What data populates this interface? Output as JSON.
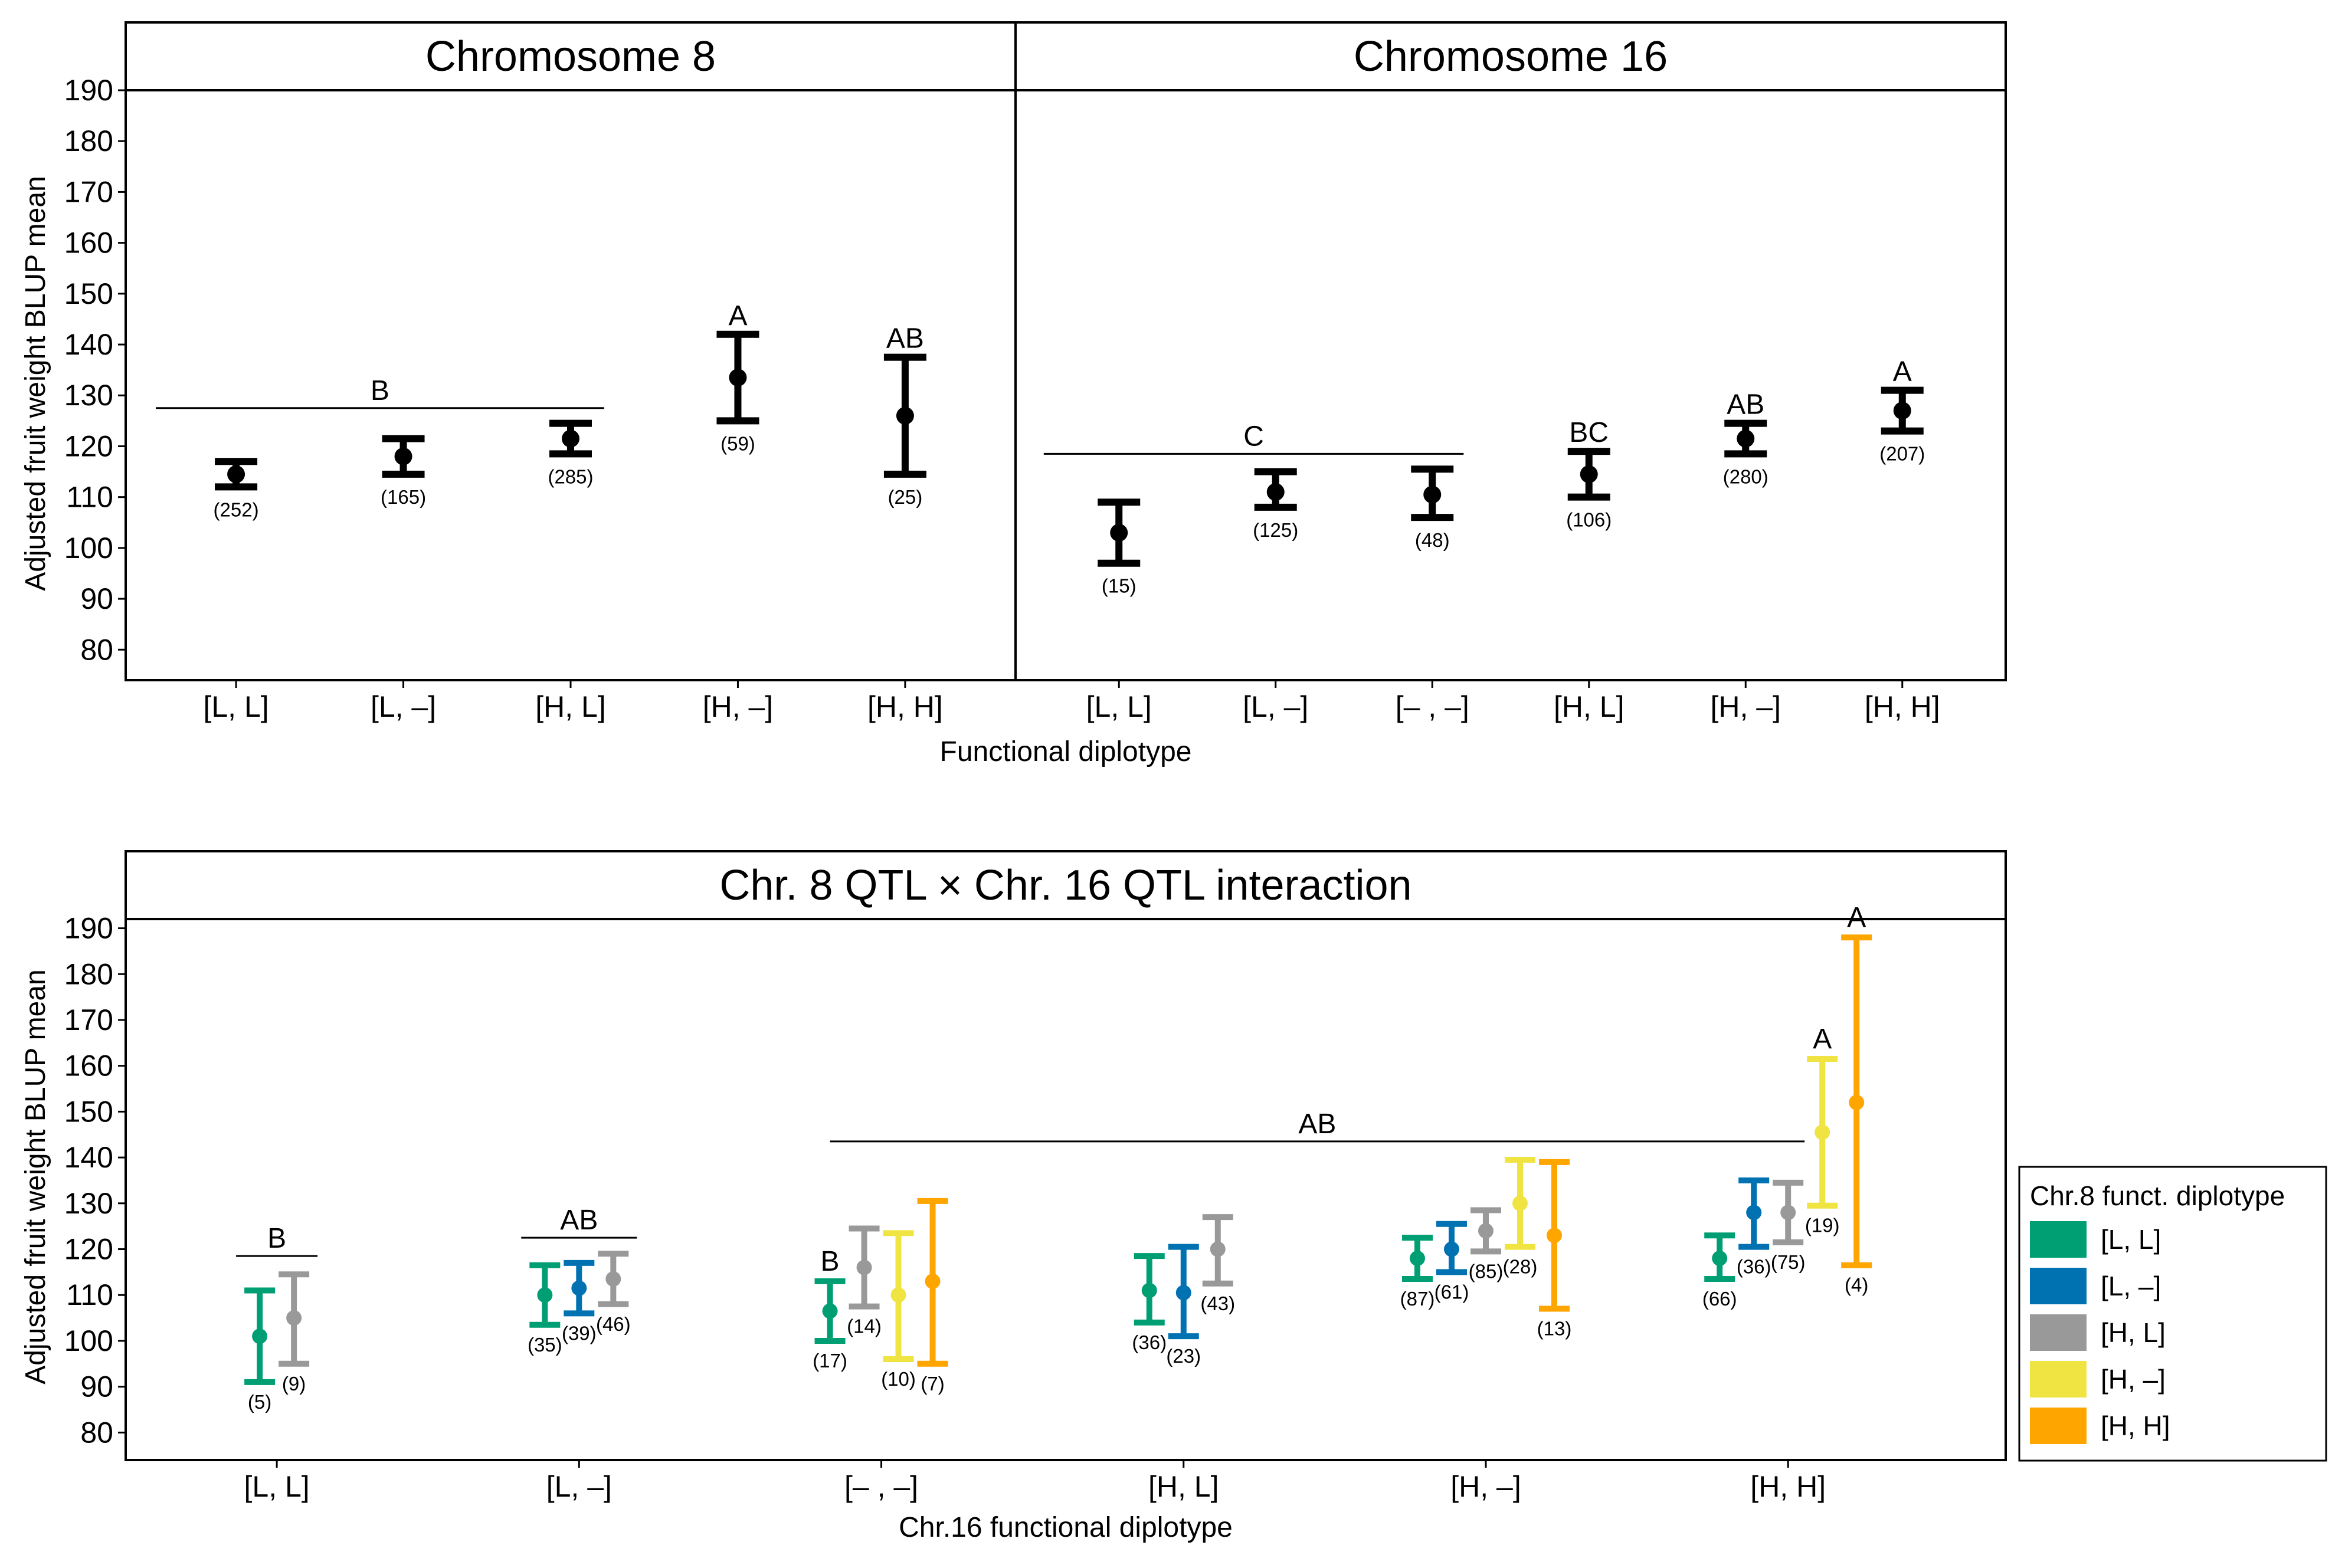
{
  "chart_data": [
    {
      "type": "errorbar",
      "panels": [
        {
          "title": "Chromosome 8",
          "categories": [
            "[L, L]",
            "[L, –]",
            "[H, L]",
            "[H, –]",
            "[H, H]"
          ],
          "points": [
            {
              "category": "[L, L]",
              "mean": 114.5,
              "lower": 112,
              "upper": 117,
              "n": "(252)"
            },
            {
              "category": "[L, –]",
              "mean": 118,
              "lower": 114.5,
              "upper": 121.5,
              "n": "(165)"
            },
            {
              "category": "[H, L]",
              "mean": 121.5,
              "lower": 118.5,
              "upper": 124.5,
              "n": "(285)"
            },
            {
              "category": "[H, –]",
              "mean": 133.5,
              "lower": 125,
              "upper": 142,
              "n": "(59)"
            },
            {
              "category": "[H, H]",
              "mean": 126,
              "lower": 114.5,
              "upper": 137.5,
              "n": "(25)"
            }
          ],
          "significance_groups": [
            {
              "label": "B",
              "from": "[L, L]",
              "to": "[H, L]",
              "line_y": 127.5
            },
            {
              "label": "A",
              "at": "[H, –]"
            },
            {
              "label": "AB",
              "at": "[H, H]"
            }
          ]
        },
        {
          "title": "Chromosome 16",
          "categories": [
            "[L, L]",
            "[L, –]",
            "[– , –]",
            "[H, L]",
            "[H, –]",
            "[H, H]"
          ],
          "points": [
            {
              "category": "[L, L]",
              "mean": 103,
              "lower": 97,
              "upper": 109,
              "n": "(15)"
            },
            {
              "category": "[L, –]",
              "mean": 111,
              "lower": 108,
              "upper": 115,
              "n": "(125)"
            },
            {
              "category": "[– , –]",
              "mean": 110.5,
              "lower": 106,
              "upper": 115.5,
              "n": "(48)"
            },
            {
              "category": "[H, L]",
              "mean": 114.5,
              "lower": 110,
              "upper": 119,
              "n": "(106)"
            },
            {
              "category": "[H, –]",
              "mean": 121.5,
              "lower": 118.5,
              "upper": 124.5,
              "n": "(280)"
            },
            {
              "category": "[H, H]",
              "mean": 127,
              "lower": 123,
              "upper": 131,
              "n": "(207)"
            }
          ],
          "significance_groups": [
            {
              "label": "C",
              "from": "[L, L]",
              "to": "[– , –]",
              "line_y": 118.5
            },
            {
              "label": "BC",
              "at": "[H, L]"
            },
            {
              "label": "AB",
              "at": "[H, –]"
            },
            {
              "label": "A",
              "at": "[H, H]"
            }
          ]
        }
      ],
      "xlabel": "Functional diplotype",
      "ylabel": "Adjusted fruit weight BLUP mean",
      "ylim": [
        74,
        190
      ],
      "yticks": [
        80,
        90,
        100,
        110,
        120,
        130,
        140,
        150,
        160,
        170,
        180,
        190
      ],
      "grid": false,
      "color": "#000000"
    },
    {
      "type": "errorbar",
      "title": "Chr. 8 QTL × Chr. 16 QTL interaction",
      "xlabel": "Chr.16 functional diplotype",
      "ylabel": "Adjusted fruit weight BLUP mean",
      "ylim": [
        74,
        192
      ],
      "yticks": [
        80,
        90,
        100,
        110,
        120,
        130,
        140,
        150,
        160,
        170,
        180,
        190
      ],
      "grid": false,
      "categories": [
        "[L, L]",
        "[L, –]",
        "[– , –]",
        "[H, L]",
        "[H, –]",
        "[H, H]"
      ],
      "legend": {
        "title": "Chr.8 funct. diplotype",
        "position": "right",
        "entries": [
          {
            "label": "[L, L]",
            "color": "#009E73"
          },
          {
            "label": "[L, –]",
            "color": "#0072B2"
          },
          {
            "label": "[H, L]",
            "color": "#999999"
          },
          {
            "label": "[H, –]",
            "color": "#F0E442"
          },
          {
            "label": "[H, H]",
            "color": "#FFA500"
          }
        ]
      },
      "groups": [
        {
          "category": "[L, L]",
          "points": [
            {
              "series": "[L, L]",
              "mean": 101,
              "lower": 91,
              "upper": 111,
              "n": "(5)"
            },
            {
              "series": "[H, L]",
              "mean": 105,
              "lower": 95,
              "upper": 114.5,
              "n": "(9)"
            }
          ]
        },
        {
          "category": "[L, –]",
          "points": [
            {
              "series": "[L, L]",
              "mean": 110,
              "lower": 103.5,
              "upper": 116.5,
              "n": "(35)"
            },
            {
              "series": "[L, –]",
              "mean": 111.5,
              "lower": 106,
              "upper": 117,
              "n": "(39)"
            },
            {
              "series": "[H, L]",
              "mean": 113.5,
              "lower": 108,
              "upper": 119,
              "n": "(46)"
            }
          ]
        },
        {
          "category": "[– , –]",
          "points": [
            {
              "series": "[L, L]",
              "mean": 106.5,
              "lower": 100,
              "upper": 113,
              "n": "(17)"
            },
            {
              "series": "[H, L]",
              "mean": 116,
              "lower": 107.5,
              "upper": 124.5,
              "n": "(14)"
            },
            {
              "series": "[H, –]",
              "mean": 110,
              "lower": 96,
              "upper": 123.5,
              "n": "(10)"
            },
            {
              "series": "[H, H]",
              "mean": 113,
              "lower": 95,
              "upper": 130.5,
              "n": "(7)"
            }
          ]
        },
        {
          "category": "[H, L]",
          "points": [
            {
              "series": "[L, L]",
              "mean": 111,
              "lower": 104,
              "upper": 118.5,
              "n": "(36)"
            },
            {
              "series": "[L, –]",
              "mean": 110.5,
              "lower": 101,
              "upper": 120.5,
              "n": "(23)"
            },
            {
              "series": "[H, L]",
              "mean": 120,
              "lower": 112.5,
              "upper": 127,
              "n": "(43)"
            }
          ]
        },
        {
          "category": "[H, –]",
          "points": [
            {
              "series": "[L, L]",
              "mean": 118,
              "lower": 113.5,
              "upper": 122.5,
              "n": "(87)"
            },
            {
              "series": "[L, –]",
              "mean": 120,
              "lower": 115,
              "upper": 125.5,
              "n": "(61)"
            },
            {
              "series": "[H, L]",
              "mean": 124,
              "lower": 119.5,
              "upper": 128.5,
              "n": "(85)"
            },
            {
              "series": "[H, –]",
              "mean": 130,
              "lower": 120.5,
              "upper": 139.5,
              "n": "(28)"
            },
            {
              "series": "[H, H]",
              "mean": 123,
              "lower": 107,
              "upper": 139,
              "n": "(13)"
            }
          ]
        },
        {
          "category": "[H, H]",
          "points": [
            {
              "series": "[L, L]",
              "mean": 118,
              "lower": 113.5,
              "upper": 123,
              "n": "(66)"
            },
            {
              "series": "[L, –]",
              "mean": 128,
              "lower": 120.5,
              "upper": 135,
              "n": "(36)"
            },
            {
              "series": "[H, L]",
              "mean": 128,
              "lower": 121.5,
              "upper": 134.5,
              "n": "(75)"
            },
            {
              "series": "[H, –]",
              "mean": 145.5,
              "lower": 129.5,
              "upper": 161.5,
              "n": "(19)"
            },
            {
              "series": "[H, H]",
              "mean": 152,
              "lower": 116.5,
              "upper": 188,
              "n": "(4)"
            }
          ]
        }
      ],
      "significance_groups": [
        {
          "label": "B",
          "category": "[L, L]",
          "line_y": 118.5,
          "span": "group"
        },
        {
          "label": "AB",
          "category": "[L, –]",
          "line_y": 122.5,
          "span": "group"
        },
        {
          "label": "B",
          "category": "[– , –]",
          "series": "[L, L]"
        },
        {
          "label": "AB",
          "line_y": 143.5,
          "span_from": "[– , –]",
          "span_to": "[H, H]"
        },
        {
          "label": "A",
          "category": "[H, H]",
          "series": "[H, –]"
        },
        {
          "label": "A",
          "category": "[H, H]",
          "series": "[H, H]"
        }
      ]
    }
  ]
}
